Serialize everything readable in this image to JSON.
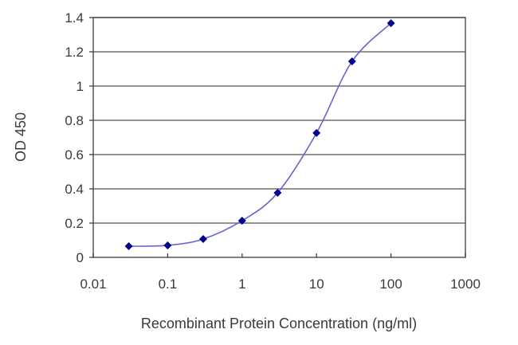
{
  "chart_data": {
    "type": "line",
    "title": "",
    "xlabel": "Recombinant Protein Concentration (ng/ml)",
    "ylabel": "OD 450",
    "xscale": "log",
    "xlim": [
      0.01,
      1000
    ],
    "ylim": [
      0,
      1.4
    ],
    "x_ticks": [
      "0.01",
      "0.1",
      "1",
      "10",
      "100",
      "1000"
    ],
    "y_ticks": [
      "0",
      "0.2",
      "0.4",
      "0.6",
      "0.8",
      "1",
      "1.2",
      "1.4"
    ],
    "grid": "horizontal",
    "legend": null,
    "series": [
      {
        "name": "OD 450",
        "color": "#00008B",
        "line_color": "#6666CC",
        "marker": "diamond",
        "x": [
          0.03,
          0.1,
          0.3,
          1,
          3,
          10,
          30,
          100
        ],
        "values": [
          0.065,
          0.07,
          0.107,
          0.214,
          0.377,
          0.726,
          1.144,
          1.367
        ]
      }
    ]
  }
}
